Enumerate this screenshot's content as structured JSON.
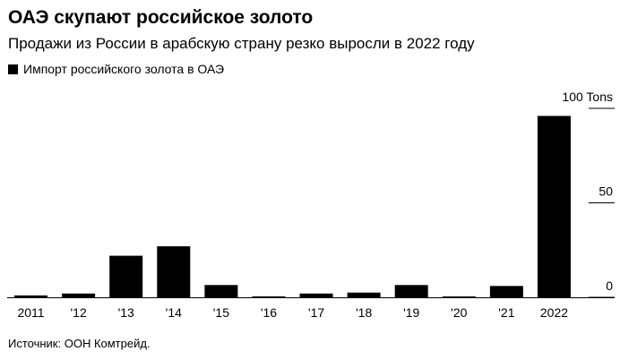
{
  "title": "ОАЭ скупают российское золото",
  "subtitle": "Продажи из России в арабскую страну резко выросли в 2022 году",
  "legend": {
    "label": "Импорт российского золота в ОАЭ",
    "color": "#000000"
  },
  "source": "Источник: ООН Комтрейд.",
  "chart_data": {
    "type": "bar",
    "title": "ОАЭ скупают российское золото",
    "subtitle": "Продажи из России в арабскую страну резко выросли в 2022 году",
    "xlabel": "",
    "ylabel": "",
    "ylim": [
      0,
      100
    ],
    "y_unit": "Tons",
    "y_ticks": [
      {
        "value": 100,
        "label": "100 Tons"
      },
      {
        "value": 50,
        "label": "50"
      },
      {
        "value": 0,
        "label": "0"
      }
    ],
    "categories": [
      "2011",
      "'12",
      "'13",
      "'14",
      "'15",
      "'16",
      "'17",
      "'18",
      "'19",
      "'20",
      "'21",
      "2022"
    ],
    "series": [
      {
        "name": "Импорт российского золота в ОАЭ",
        "color": "#000000",
        "values": [
          1,
          2,
          22,
          27,
          6.5,
          0.5,
          2,
          2.5,
          6.5,
          0.2,
          6,
          96
        ]
      }
    ],
    "grid": false,
    "legend_position": "top-left"
  }
}
